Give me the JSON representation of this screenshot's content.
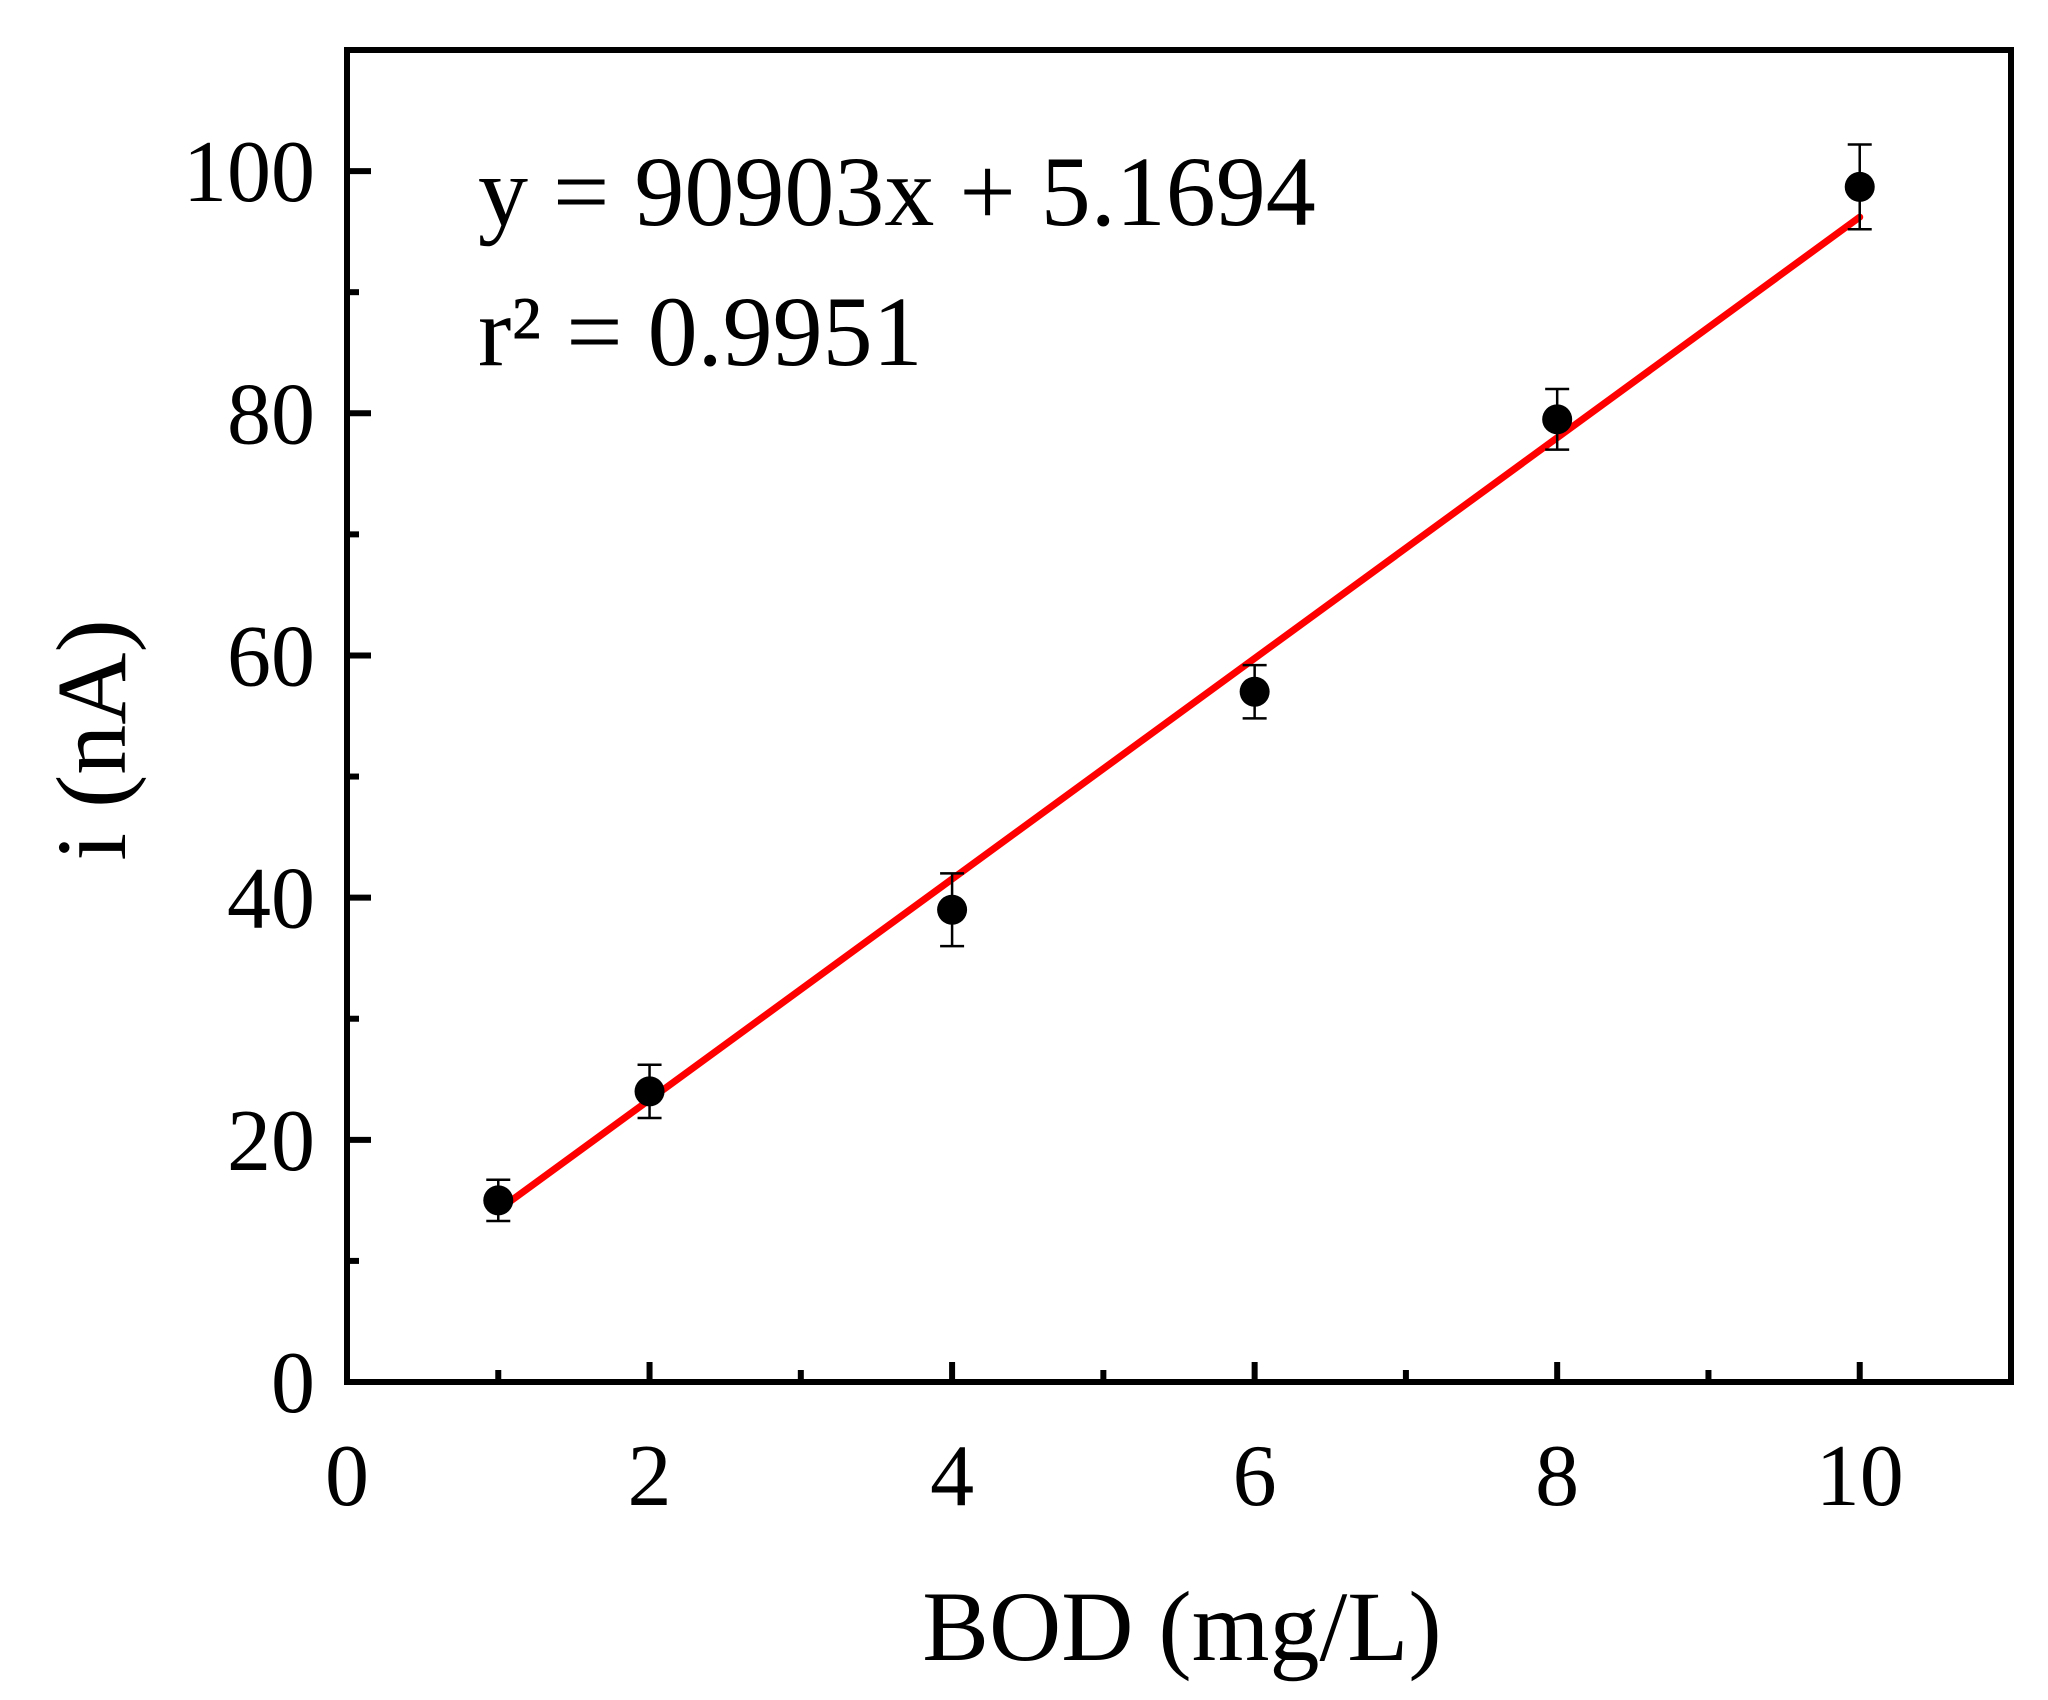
{
  "chart_data": {
    "type": "scatter",
    "xlabel": "BOD (mg/L)",
    "ylabel": "i (nA)",
    "xlim": [
      0,
      11
    ],
    "ylim": [
      0,
      110
    ],
    "x_major_ticks": [
      0,
      2,
      4,
      6,
      8,
      10
    ],
    "x_minor_ticks": [
      1,
      3,
      5,
      7,
      9
    ],
    "y_major_ticks": [
      0,
      20,
      40,
      60,
      80,
      100
    ],
    "y_minor_ticks": [
      10,
      30,
      50,
      70,
      90
    ],
    "grid": false,
    "legend": "none",
    "annotations": [
      "y = 90903x + 5.1694",
      "r² = 0.9951"
    ],
    "points": [
      {
        "x": 1,
        "y": 15.0,
        "err": 1.7
      },
      {
        "x": 2,
        "y": 24.0,
        "err": 2.2
      },
      {
        "x": 4,
        "y": 39.0,
        "err": 3.0
      },
      {
        "x": 6,
        "y": 57.0,
        "err": 2.2
      },
      {
        "x": 8,
        "y": 79.5,
        "err": 2.5
      },
      {
        "x": 10,
        "y": 98.7,
        "err": 3.5
      }
    ],
    "fit_line": {
      "x": [
        1,
        10
      ],
      "y": [
        14.2,
        96.2
      ]
    },
    "colors": {
      "points": "#000000",
      "fit": "#ff0000",
      "axes": "#000000"
    }
  }
}
